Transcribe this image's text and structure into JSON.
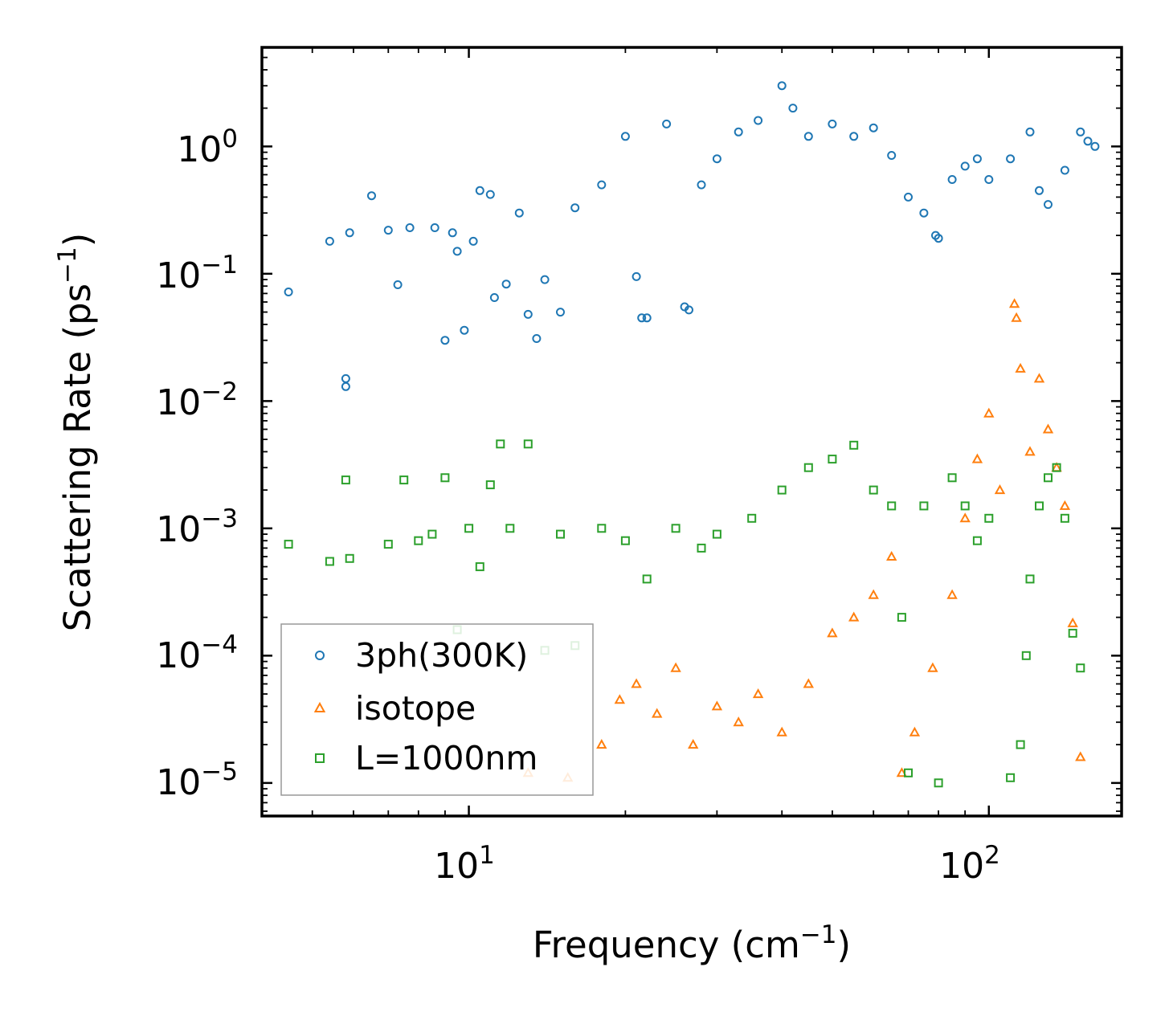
{
  "chart_data": {
    "type": "scatter",
    "title": "",
    "xlabel": "Frequency",
    "xlabel_unit_base": "cm",
    "xlabel_unit_exp": "−1",
    "ylabel": "Scattering Rate",
    "ylabel_unit_base": "ps",
    "ylabel_unit_exp": "−1",
    "xscale": "log",
    "yscale": "log",
    "xlim": [
      4.0,
      180.0
    ],
    "ylim": [
      5.5e-06,
      6.0
    ],
    "x_major_ticks": [
      {
        "value": 10,
        "base": "10",
        "exp": "1"
      },
      {
        "value": 100,
        "base": "10",
        "exp": "2"
      }
    ],
    "y_major_ticks": [
      {
        "value": 1,
        "base": "10",
        "exp": "0"
      },
      {
        "value": 0.1,
        "base": "10",
        "exp": "−1"
      },
      {
        "value": 0.01,
        "base": "10",
        "exp": "−2"
      },
      {
        "value": 0.001,
        "base": "10",
        "exp": "−3"
      },
      {
        "value": 0.0001,
        "base": "10",
        "exp": "−4"
      },
      {
        "value": 1e-05,
        "base": "10",
        "exp": "−5"
      }
    ],
    "legend_position": "lower-left",
    "series": [
      {
        "name": "3ph(300K)",
        "marker": "circle",
        "color": "#1f77b4",
        "points": [
          [
            4.5,
            0.072
          ],
          [
            5.4,
            0.18
          ],
          [
            5.8,
            0.015
          ],
          [
            5.8,
            0.013
          ],
          [
            5.9,
            0.21
          ],
          [
            6.5,
            0.41
          ],
          [
            7.0,
            0.22
          ],
          [
            7.3,
            0.082
          ],
          [
            7.7,
            0.23
          ],
          [
            8.6,
            0.23
          ],
          [
            9.0,
            0.03
          ],
          [
            9.3,
            0.21
          ],
          [
            9.5,
            0.15
          ],
          [
            9.8,
            0.036
          ],
          [
            10.2,
            0.18
          ],
          [
            10.5,
            0.45
          ],
          [
            11.0,
            0.42
          ],
          [
            11.2,
            0.065
          ],
          [
            11.8,
            0.083
          ],
          [
            12.5,
            0.3
          ],
          [
            13.0,
            0.048
          ],
          [
            13.5,
            0.031
          ],
          [
            14.0,
            0.09
          ],
          [
            15.0,
            0.05
          ],
          [
            16.0,
            0.33
          ],
          [
            18.0,
            0.5
          ],
          [
            20.0,
            1.2
          ],
          [
            21.0,
            0.095
          ],
          [
            21.5,
            0.045
          ],
          [
            22.0,
            0.045
          ],
          [
            24.0,
            1.5
          ],
          [
            26.0,
            0.055
          ],
          [
            26.5,
            0.052
          ],
          [
            28.0,
            0.5
          ],
          [
            30.0,
            0.8
          ],
          [
            33.0,
            1.3
          ],
          [
            36.0,
            1.6
          ],
          [
            40.0,
            3.0
          ],
          [
            42.0,
            2.0
          ],
          [
            45.0,
            1.2
          ],
          [
            50.0,
            1.5
          ],
          [
            55.0,
            1.2
          ],
          [
            60.0,
            1.4
          ],
          [
            65.0,
            0.85
          ],
          [
            70.0,
            0.4
          ],
          [
            75.0,
            0.3
          ],
          [
            79.0,
            0.2
          ],
          [
            80.0,
            0.19
          ],
          [
            85.0,
            0.55
          ],
          [
            90.0,
            0.7
          ],
          [
            95.0,
            0.8
          ],
          [
            100.0,
            0.55
          ],
          [
            110.0,
            0.8
          ],
          [
            120.0,
            1.3
          ],
          [
            125.0,
            0.45
          ],
          [
            130.0,
            0.35
          ],
          [
            140.0,
            0.65
          ],
          [
            150.0,
            1.3
          ],
          [
            155.0,
            1.1
          ],
          [
            160.0,
            1.0
          ]
        ]
      },
      {
        "name": "isotope",
        "marker": "triangle",
        "color": "#ff7f0e",
        "points": [
          [
            13.0,
            1.2e-05
          ],
          [
            15.5,
            1.1e-05
          ],
          [
            18.0,
            2e-05
          ],
          [
            19.5,
            4.5e-05
          ],
          [
            21.0,
            6e-05
          ],
          [
            23.0,
            3.5e-05
          ],
          [
            25.0,
            8e-05
          ],
          [
            27.0,
            2e-05
          ],
          [
            30.0,
            4e-05
          ],
          [
            33.0,
            3e-05
          ],
          [
            36.0,
            5e-05
          ],
          [
            40.0,
            2.5e-05
          ],
          [
            45.0,
            6e-05
          ],
          [
            50.0,
            0.00015
          ],
          [
            55.0,
            0.0002
          ],
          [
            60.0,
            0.0003
          ],
          [
            65.0,
            0.0006
          ],
          [
            68.0,
            1.2e-05
          ],
          [
            72.0,
            2.5e-05
          ],
          [
            78.0,
            8e-05
          ],
          [
            85.0,
            0.0003
          ],
          [
            90.0,
            0.0012
          ],
          [
            95.0,
            0.0035
          ],
          [
            100.0,
            0.008
          ],
          [
            105.0,
            0.002
          ],
          [
            112.0,
            0.058
          ],
          [
            113.0,
            0.045
          ],
          [
            115.0,
            0.018
          ],
          [
            120.0,
            0.004
          ],
          [
            125.0,
            0.015
          ],
          [
            130.0,
            0.006
          ],
          [
            135.0,
            0.003
          ],
          [
            140.0,
            0.0015
          ],
          [
            145.0,
            0.00018
          ],
          [
            150.0,
            1.6e-05
          ]
        ]
      },
      {
        "name": "L=1000nm",
        "marker": "square",
        "color": "#2ca02c",
        "points": [
          [
            4.5,
            0.00075
          ],
          [
            5.4,
            0.00055
          ],
          [
            5.8,
            0.0024
          ],
          [
            5.9,
            0.00058
          ],
          [
            7.0,
            0.00075
          ],
          [
            7.5,
            0.0024
          ],
          [
            8.0,
            0.0008
          ],
          [
            8.5,
            0.0009
          ],
          [
            9.0,
            0.0025
          ],
          [
            9.5,
            0.00016
          ],
          [
            10.0,
            0.001
          ],
          [
            10.5,
            0.0005
          ],
          [
            11.0,
            0.0022
          ],
          [
            11.5,
            0.0046
          ],
          [
            12.0,
            0.001
          ],
          [
            13.0,
            0.0046
          ],
          [
            14.0,
            0.00011
          ],
          [
            15.0,
            0.0009
          ],
          [
            16.0,
            0.00012
          ],
          [
            18.0,
            0.001
          ],
          [
            20.0,
            0.0008
          ],
          [
            22.0,
            0.0004
          ],
          [
            25.0,
            0.001
          ],
          [
            28.0,
            0.0007
          ],
          [
            30.0,
            0.0009
          ],
          [
            35.0,
            0.0012
          ],
          [
            40.0,
            0.002
          ],
          [
            45.0,
            0.003
          ],
          [
            50.0,
            0.0035
          ],
          [
            55.0,
            0.0045
          ],
          [
            60.0,
            0.002
          ],
          [
            65.0,
            0.0015
          ],
          [
            68.0,
            0.0002
          ],
          [
            70.0,
            1.2e-05
          ],
          [
            75.0,
            0.0015
          ],
          [
            80.0,
            1e-05
          ],
          [
            85.0,
            0.0025
          ],
          [
            90.0,
            0.0015
          ],
          [
            95.0,
            0.0008
          ],
          [
            100.0,
            0.0012
          ],
          [
            110.0,
            1.1e-05
          ],
          [
            115.0,
            2e-05
          ],
          [
            118.0,
            0.0001
          ],
          [
            120.0,
            0.0004
          ],
          [
            125.0,
            0.0015
          ],
          [
            130.0,
            0.0025
          ],
          [
            135.0,
            0.003
          ],
          [
            140.0,
            0.0012
          ],
          [
            145.0,
            0.00015
          ],
          [
            150.0,
            8e-05
          ]
        ]
      }
    ]
  }
}
